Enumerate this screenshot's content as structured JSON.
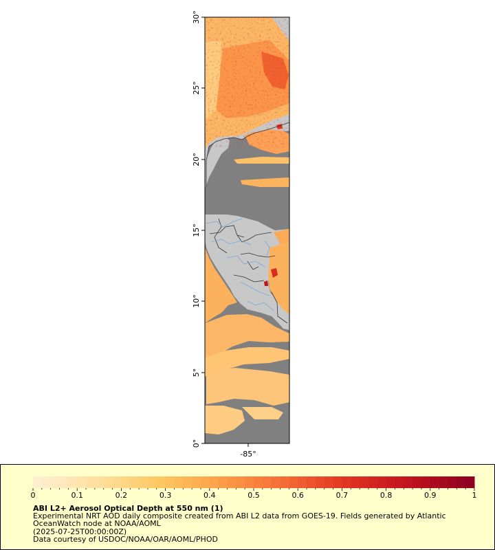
{
  "map": {
    "y_axis_labels": [
      "30°",
      "25°",
      "20°",
      "15°",
      "10°",
      "5°",
      "0°"
    ],
    "y_axis_values": [
      30,
      25,
      20,
      15,
      10,
      5,
      0
    ],
    "x_axis_labels": [
      "-85°"
    ],
    "lat_range": [
      0,
      30
    ],
    "colors": {
      "land": "#c8c8c8",
      "ocean_nodata": "#808080",
      "borders": "#333333",
      "rivers": "#7aa6d6"
    }
  },
  "legend": {
    "title": "ABI L2+ Aerosol Optical Depth at 550 nm (1)",
    "description": "Experimental NRT AOD daily composite created from ABI L2 data from GOES-19. Fields generated by Atlantic OceanWatch node at NOAA/AOML",
    "date": "(2025-07-25T00:00:00Z)",
    "credit": "Data courtesy of USDOC/NOAA/OAR/AOML/PHOD",
    "tick_labels": [
      "0",
      "0.1",
      "0.2",
      "0.3",
      "0.4",
      "0.5",
      "0.6",
      "0.7",
      "0.8",
      "0.9",
      "1"
    ],
    "range": [
      0,
      1
    ],
    "colormap": [
      "#fff0d4",
      "#ffe0a0",
      "#fdc862",
      "#fc9d48",
      "#f56a35",
      "#e03221",
      "#c0121e",
      "#8b0020"
    ]
  }
}
